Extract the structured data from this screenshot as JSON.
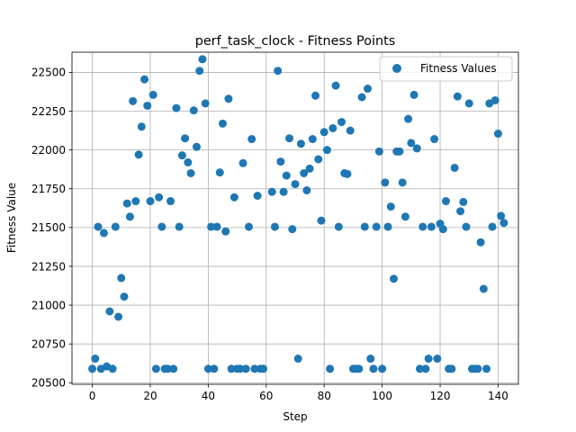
{
  "chart_data": {
    "type": "scatter",
    "title": "perf_task_clock - Fitness Points",
    "xlabel": "Step",
    "ylabel": "Fitness Value",
    "xlim": [
      -7,
      147
    ],
    "ylim": [
      20490,
      22630
    ],
    "xticks": [
      0,
      20,
      40,
      60,
      80,
      100,
      120,
      140
    ],
    "yticks": [
      20500,
      20750,
      21000,
      21250,
      21500,
      21750,
      22000,
      22250,
      22500
    ],
    "grid": true,
    "legend_position": "top-right",
    "series": [
      {
        "name": "Fitness Values",
        "color": "#1f77b4",
        "points": [
          [
            0,
            20590
          ],
          [
            1,
            20655
          ],
          [
            2,
            21505
          ],
          [
            3,
            20590
          ],
          [
            4,
            21465
          ],
          [
            5,
            20605
          ],
          [
            6,
            20960
          ],
          [
            7,
            20590
          ],
          [
            8,
            21505
          ],
          [
            9,
            20925
          ],
          [
            10,
            21175
          ],
          [
            11,
            21055
          ],
          [
            12,
            21655
          ],
          [
            13,
            21570
          ],
          [
            14,
            22315
          ],
          [
            15,
            21670
          ],
          [
            16,
            21970
          ],
          [
            17,
            22150
          ],
          [
            18,
            22455
          ],
          [
            19,
            22285
          ],
          [
            20,
            21670
          ],
          [
            21,
            22355
          ],
          [
            22,
            20590
          ],
          [
            23,
            21695
          ],
          [
            24,
            21505
          ],
          [
            25,
            20590
          ],
          [
            26,
            20590
          ],
          [
            27,
            21670
          ],
          [
            28,
            20590
          ],
          [
            29,
            22270
          ],
          [
            30,
            21505
          ],
          [
            31,
            21965
          ],
          [
            32,
            22075
          ],
          [
            33,
            21920
          ],
          [
            34,
            21850
          ],
          [
            35,
            22255
          ],
          [
            36,
            22020
          ],
          [
            37,
            22510
          ],
          [
            38,
            22585
          ],
          [
            39,
            22300
          ],
          [
            40,
            20590
          ],
          [
            41,
            21505
          ],
          [
            42,
            20590
          ],
          [
            43,
            21505
          ],
          [
            44,
            21855
          ],
          [
            45,
            22170
          ],
          [
            46,
            21475
          ],
          [
            47,
            22330
          ],
          [
            48,
            20590
          ],
          [
            49,
            21695
          ],
          [
            50,
            20590
          ],
          [
            51,
            20590
          ],
          [
            52,
            21915
          ],
          [
            53,
            20590
          ],
          [
            54,
            21505
          ],
          [
            55,
            22070
          ],
          [
            56,
            20590
          ],
          [
            57,
            21705
          ],
          [
            58,
            20590
          ],
          [
            59,
            20590
          ],
          [
            62,
            21730
          ],
          [
            63,
            21505
          ],
          [
            64,
            22510
          ],
          [
            65,
            21925
          ],
          [
            66,
            21730
          ],
          [
            67,
            21835
          ],
          [
            68,
            22075
          ],
          [
            69,
            21490
          ],
          [
            70,
            21780
          ],
          [
            71,
            20655
          ],
          [
            72,
            22040
          ],
          [
            73,
            21850
          ],
          [
            74,
            21740
          ],
          [
            75,
            21880
          ],
          [
            76,
            22070
          ],
          [
            77,
            22350
          ],
          [
            78,
            21940
          ],
          [
            79,
            21545
          ],
          [
            80,
            22115
          ],
          [
            81,
            22000
          ],
          [
            82,
            20590
          ],
          [
            83,
            22140
          ],
          [
            84,
            22415
          ],
          [
            85,
            21505
          ],
          [
            86,
            22180
          ],
          [
            87,
            21850
          ],
          [
            88,
            21845
          ],
          [
            89,
            22125
          ],
          [
            90,
            20590
          ],
          [
            91,
            20590
          ],
          [
            92,
            20590
          ],
          [
            93,
            22340
          ],
          [
            94,
            21505
          ],
          [
            95,
            22395
          ],
          [
            96,
            20655
          ],
          [
            97,
            20590
          ],
          [
            98,
            21505
          ],
          [
            99,
            21990
          ],
          [
            100,
            20590
          ],
          [
            101,
            21790
          ],
          [
            102,
            21505
          ],
          [
            103,
            21635
          ],
          [
            104,
            21170
          ],
          [
            105,
            21990
          ],
          [
            106,
            21990
          ],
          [
            107,
            21790
          ],
          [
            108,
            21570
          ],
          [
            109,
            22200
          ],
          [
            110,
            22045
          ],
          [
            111,
            22355
          ],
          [
            112,
            22010
          ],
          [
            113,
            20590
          ],
          [
            114,
            21505
          ],
          [
            115,
            20590
          ],
          [
            116,
            20655
          ],
          [
            117,
            21505
          ],
          [
            118,
            22070
          ],
          [
            119,
            20655
          ],
          [
            120,
            21525
          ],
          [
            121,
            21490
          ],
          [
            122,
            21670
          ],
          [
            123,
            20590
          ],
          [
            124,
            20590
          ],
          [
            125,
            21885
          ],
          [
            126,
            22345
          ],
          [
            127,
            21605
          ],
          [
            128,
            21665
          ],
          [
            129,
            21505
          ],
          [
            130,
            22300
          ],
          [
            131,
            20590
          ],
          [
            132,
            20590
          ],
          [
            133,
            20590
          ],
          [
            134,
            21405
          ],
          [
            135,
            21105
          ],
          [
            136,
            20590
          ],
          [
            137,
            22300
          ],
          [
            138,
            21505
          ],
          [
            139,
            22320
          ],
          [
            140,
            22105
          ],
          [
            141,
            21575
          ],
          [
            142,
            21530
          ]
        ]
      }
    ]
  }
}
